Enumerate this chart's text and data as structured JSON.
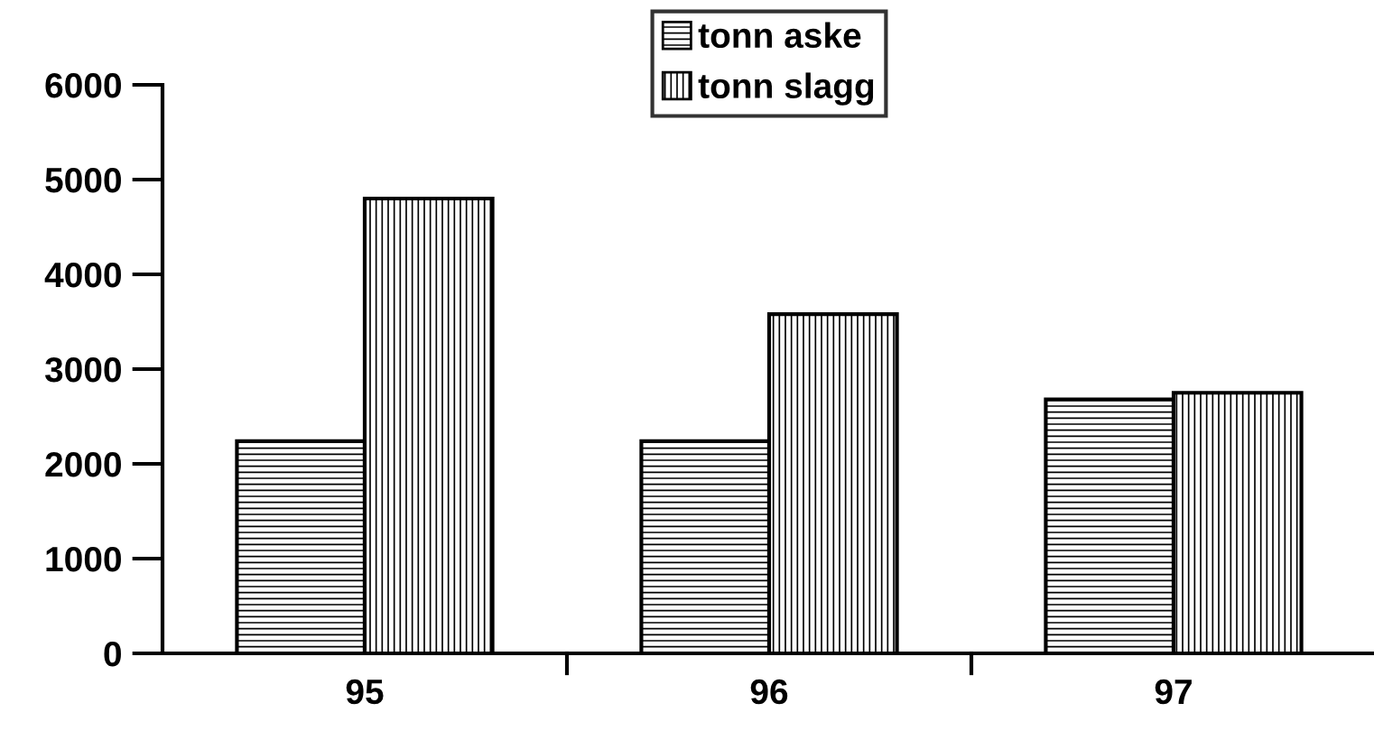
{
  "chart_data": {
    "type": "bar",
    "categories": [
      "95",
      "96",
      "97"
    ],
    "series": [
      {
        "name": "tonn aske",
        "color": "#000000",
        "values": [
          2240,
          2240,
          2680
        ]
      },
      {
        "name": "tonn slagg",
        "color": "#000000",
        "values": [
          4800,
          3580,
          2750
        ]
      }
    ],
    "ylim": [
      0,
      6000
    ],
    "yticks": [
      0,
      1000,
      2000,
      3000,
      4000,
      5000,
      6000
    ],
    "grid": false,
    "legend": "top"
  }
}
